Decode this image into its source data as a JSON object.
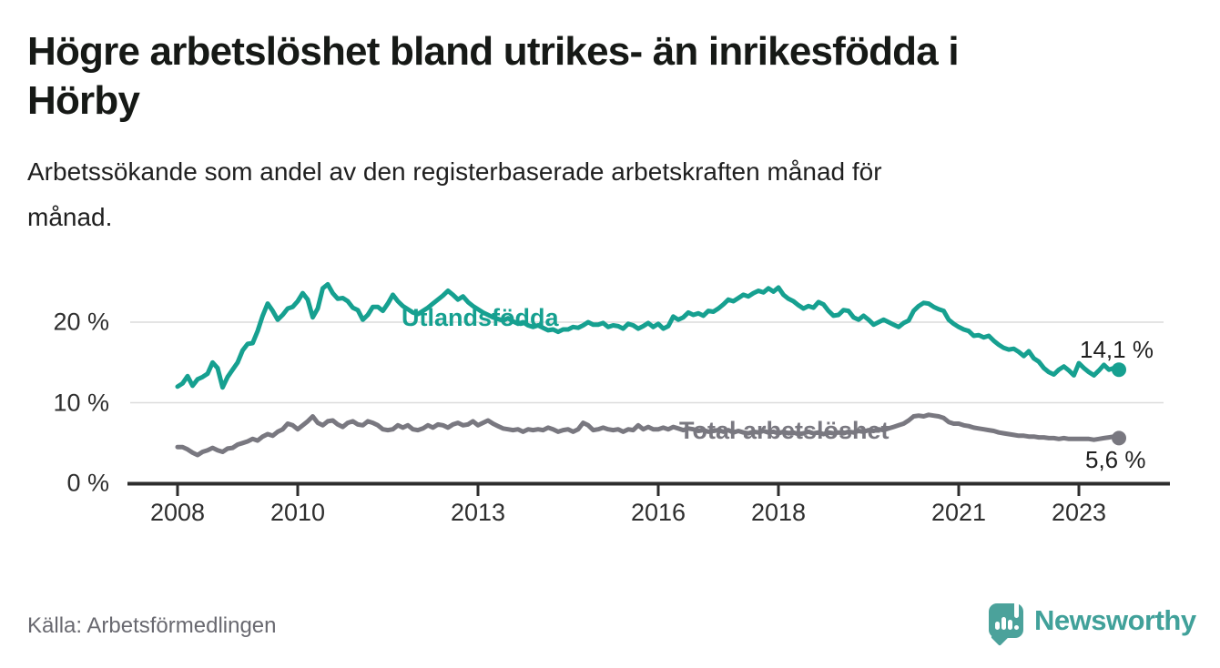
{
  "header": {
    "title_lines": [
      "Högre arbetslöshet bland utrikes- än inrikesfödda i",
      "Hörby"
    ],
    "subtitle_lines": [
      "Arbetssökande som andel av den registerbaserade arbetskraften månad för",
      "månad."
    ]
  },
  "footer": {
    "source": "Källa: Arbetsförmedlingen",
    "logo_text": "Newsworthy",
    "logo_color": "#4ba29b"
  },
  "chart_data": {
    "type": "line",
    "title": "Högre arbetslöshet bland utrikes- än inrikesfödda i Hörby",
    "subtitle": "Arbetssökande som andel av den registerbaserade arbetskraften månad för månad.",
    "unit": "%",
    "grid": "horizontal",
    "x_range": [
      2008.0,
      2023.75
    ],
    "ylim": [
      0,
      26
    ],
    "x_ticks": [
      {
        "label": "2008",
        "year": 2008
      },
      {
        "label": "2010",
        "year": 2010
      },
      {
        "label": "2013",
        "year": 2013
      },
      {
        "label": "2016",
        "year": 2016
      },
      {
        "label": "2018",
        "year": 2018
      },
      {
        "label": "2021",
        "year": 2021
      },
      {
        "label": "2023",
        "year": 2023
      }
    ],
    "y_ticks": [
      {
        "label": "20 %",
        "value": 20
      },
      {
        "label": "10 %",
        "value": 10
      },
      {
        "label": "0 %",
        "value": 0
      }
    ],
    "series": [
      {
        "name": "Utlandsfödda",
        "color": "#16a090",
        "end_label": "14,1 %",
        "end_value": 14.1,
        "start_year": 2008,
        "start_month": 1,
        "frequency": "monthly",
        "values": [
          12.0,
          12.4,
          13.3,
          12.1,
          12.9,
          13.2,
          13.6,
          15.0,
          14.3,
          11.9,
          13.2,
          14.1,
          15.0,
          16.5,
          17.3,
          17.4,
          18.9,
          20.8,
          22.3,
          21.4,
          20.3,
          20.9,
          21.7,
          21.9,
          22.6,
          23.6,
          22.8,
          20.6,
          21.7,
          24.2,
          24.7,
          23.6,
          22.9,
          23.0,
          22.6,
          21.8,
          21.5,
          20.3,
          20.9,
          21.9,
          21.9,
          21.4,
          22.3,
          23.4,
          22.6,
          22.0,
          21.6,
          21.2,
          21.0,
          21.4,
          21.8,
          22.3,
          22.8,
          23.3,
          23.9,
          23.4,
          22.8,
          23.2,
          22.5,
          22.0,
          21.6,
          21.2,
          20.9,
          20.6,
          20.4,
          20.2,
          20.5,
          20.1,
          19.8,
          20.0,
          19.6,
          19.4,
          19.6,
          19.3,
          19.0,
          19.1,
          18.8,
          19.1,
          19.1,
          19.4,
          19.3,
          19.6,
          20.0,
          19.7,
          19.7,
          19.9,
          19.4,
          19.6,
          19.5,
          19.2,
          19.8,
          19.6,
          19.2,
          19.5,
          19.9,
          19.4,
          19.8,
          19.2,
          19.5,
          20.7,
          20.3,
          20.6,
          21.2,
          20.9,
          21.1,
          20.8,
          21.4,
          21.3,
          21.7,
          22.2,
          22.8,
          22.6,
          23.0,
          23.4,
          23.2,
          23.6,
          23.9,
          23.7,
          24.2,
          23.8,
          24.3,
          23.4,
          22.9,
          22.6,
          22.1,
          21.7,
          22.0,
          21.8,
          22.5,
          22.2,
          21.4,
          20.8,
          20.9,
          21.5,
          21.4,
          20.6,
          20.3,
          20.8,
          20.3,
          19.7,
          20.0,
          20.3,
          20.0,
          19.7,
          19.4,
          19.9,
          20.2,
          21.4,
          22.0,
          22.4,
          22.3,
          21.9,
          21.6,
          21.4,
          20.3,
          19.8,
          19.4,
          19.1,
          18.9,
          18.3,
          18.4,
          18.1,
          18.3,
          17.7,
          17.2,
          16.8,
          16.6,
          16.7,
          16.3,
          15.8,
          16.4,
          15.5,
          15.1,
          14.3,
          13.8,
          13.5,
          14.1,
          14.5,
          14.0,
          13.4,
          14.9,
          14.3,
          13.8,
          13.4,
          14.0,
          14.7,
          14.1,
          14.3,
          14.1
        ]
      },
      {
        "name": "Total arbetslöshet",
        "color": "#797880",
        "end_label": "5,6 %",
        "end_value": 5.6,
        "start_year": 2008,
        "start_month": 1,
        "frequency": "monthly",
        "values": [
          4.5,
          4.5,
          4.2,
          3.8,
          3.5,
          3.9,
          4.1,
          4.4,
          4.1,
          3.9,
          4.3,
          4.4,
          4.8,
          5.0,
          5.2,
          5.5,
          5.3,
          5.8,
          6.1,
          5.9,
          6.4,
          6.7,
          7.4,
          7.2,
          6.7,
          7.2,
          7.7,
          8.3,
          7.5,
          7.2,
          7.7,
          7.8,
          7.3,
          7.0,
          7.5,
          7.7,
          7.3,
          7.2,
          7.7,
          7.5,
          7.2,
          6.7,
          6.6,
          6.7,
          7.2,
          6.9,
          7.2,
          6.7,
          6.6,
          6.8,
          7.2,
          6.9,
          7.3,
          7.2,
          6.9,
          7.3,
          7.5,
          7.2,
          7.3,
          7.7,
          7.2,
          7.5,
          7.8,
          7.4,
          7.1,
          6.8,
          6.7,
          6.6,
          6.7,
          6.4,
          6.7,
          6.6,
          6.7,
          6.6,
          6.9,
          6.7,
          6.4,
          6.6,
          6.7,
          6.4,
          6.7,
          7.5,
          7.2,
          6.6,
          6.7,
          6.9,
          6.7,
          6.6,
          6.7,
          6.4,
          6.7,
          6.6,
          7.2,
          6.7,
          7.0,
          6.7,
          6.7,
          6.9,
          6.7,
          7.0,
          6.8,
          6.6,
          6.8,
          6.7,
          6.5,
          6.6,
          6.4,
          6.5,
          6.6,
          6.4,
          6.6,
          6.3,
          6.5,
          6.3,
          6.2,
          6.4,
          6.3,
          6.5,
          6.3,
          6.4,
          6.2,
          6.4,
          6.2,
          6.3,
          6.1,
          6.2,
          6.4,
          6.2,
          6.3,
          6.1,
          6.3,
          6.2,
          6.3,
          6.2,
          6.4,
          6.3,
          6.5,
          6.4,
          6.6,
          6.5,
          6.7,
          6.6,
          6.8,
          7.0,
          7.2,
          7.4,
          7.8,
          8.3,
          8.4,
          8.3,
          8.5,
          8.4,
          8.3,
          8.1,
          7.6,
          7.4,
          7.4,
          7.2,
          7.1,
          6.9,
          6.8,
          6.7,
          6.6,
          6.5,
          6.3,
          6.2,
          6.1,
          6.0,
          5.9,
          5.9,
          5.8,
          5.8,
          5.7,
          5.7,
          5.6,
          5.6,
          5.5,
          5.6,
          5.5,
          5.5,
          5.5,
          5.5,
          5.5,
          5.4,
          5.5,
          5.6,
          5.7,
          5.8,
          5.6
        ]
      }
    ],
    "axis_color": "#2d2d2d",
    "gridline_color": "#dcdcdc"
  }
}
